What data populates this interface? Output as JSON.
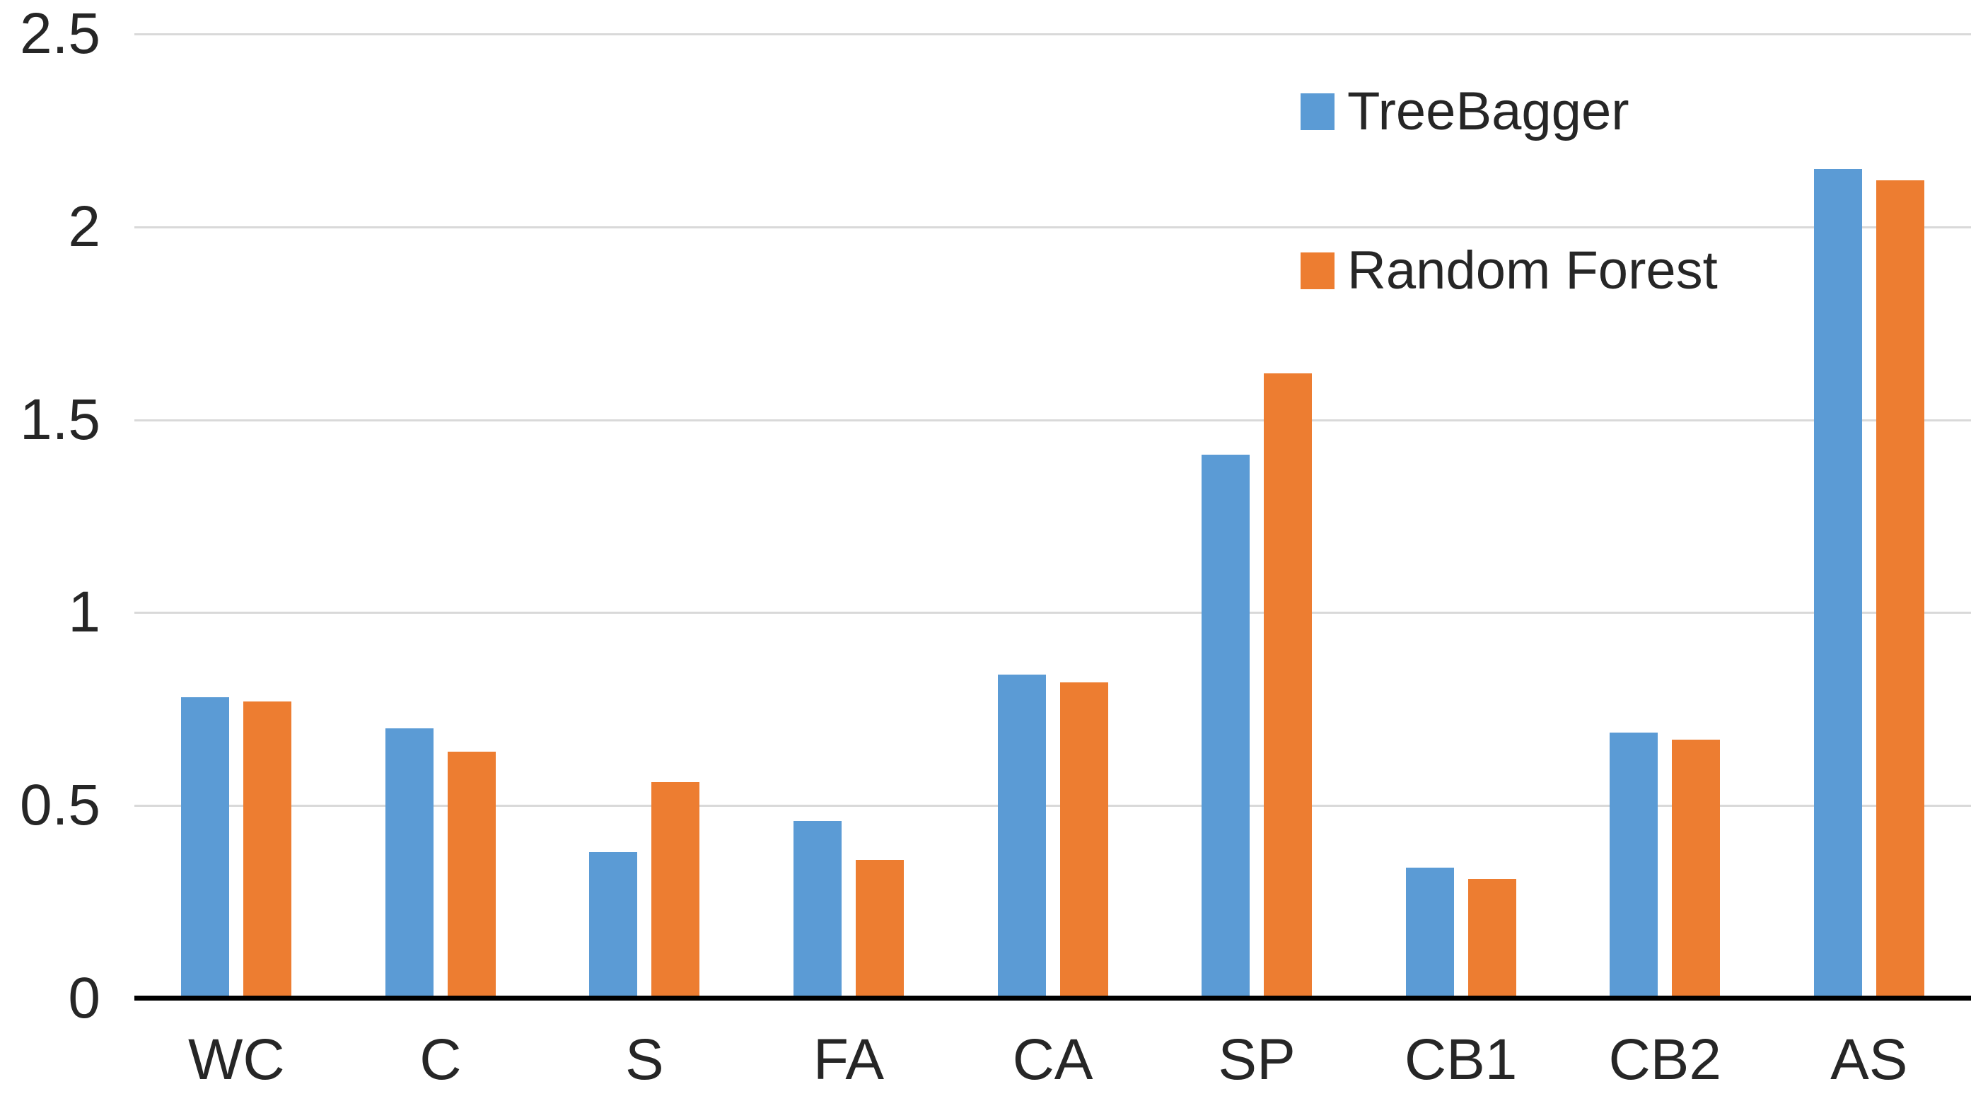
{
  "chart_data": {
    "type": "bar",
    "title": "",
    "categories": [
      "WC",
      "C",
      "S",
      "FA",
      "CA",
      "SP",
      "CB1",
      "CB2",
      "AS"
    ],
    "series": [
      {
        "name": "TreeBagger",
        "color": "#5B9BD5",
        "values": [
          0.78,
          0.7,
          0.38,
          0.46,
          0.84,
          1.41,
          0.34,
          0.69,
          2.15
        ]
      },
      {
        "name": "Random Forest",
        "color": "#ED7D31",
        "values": [
          0.77,
          0.64,
          0.56,
          0.36,
          0.82,
          1.62,
          0.31,
          0.67,
          2.12
        ]
      }
    ],
    "xlabel": "",
    "ylabel": "",
    "ylim": [
      0,
      2.5
    ],
    "yticks": [
      0,
      0.5,
      1,
      1.5,
      2,
      2.5
    ],
    "ytick_labels": [
      "0",
      "0.5",
      "1",
      "1.5",
      "2",
      "2.5"
    ],
    "grid": "horizontal",
    "legend_position": "top-right"
  },
  "colors": {
    "gridline": "#D9D9D9",
    "axis_line": "#000000",
    "text": "#262626",
    "background": "#FFFFFF"
  }
}
